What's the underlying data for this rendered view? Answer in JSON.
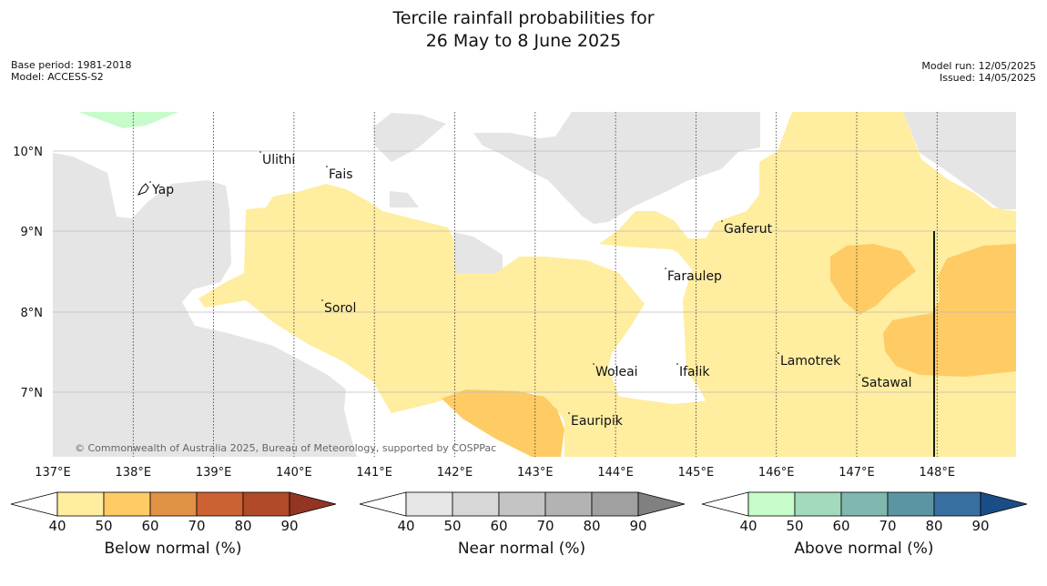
{
  "title": {
    "line1": "Tercile rainfall probabilities for",
    "line2": "26 May to 8 June 2025"
  },
  "meta": {
    "base_period": "Base period: 1981-2018",
    "model": "Model: ACCESS-S2",
    "model_run": "Model run: 12/05/2025",
    "issued": "Issued: 14/05/2025"
  },
  "map": {
    "lon_ticks": [
      "137°E",
      "138°E",
      "139°E",
      "140°E",
      "141°E",
      "142°E",
      "143°E",
      "144°E",
      "145°E",
      "146°E",
      "147°E",
      "148°E"
    ],
    "lat_ticks": [
      "10°N",
      "9°N",
      "8°N",
      "7°N"
    ],
    "places": [
      "Yap",
      "Ulithi",
      "Fais",
      "Sorol",
      "Woleai",
      "Ifalik",
      "Eauripik",
      "Faraulep",
      "Gaferut",
      "Lamotrek",
      "Satawal"
    ],
    "copyright": "© Commonwealth of Australia 2025, Bureau of Meteorology, supported by COSPPac",
    "colors": {
      "land": "#e5e5e5",
      "below_40_50": "#ffeda0",
      "below_50_60": "#fecb65",
      "above_40_50": "#c7fcca",
      "ocean": "#ffffff"
    }
  },
  "colorbars": [
    {
      "label": "Below normal (%)",
      "ticks": [
        "40",
        "50",
        "60",
        "70",
        "80",
        "90"
      ],
      "colors": [
        "#ffffff",
        "#ffeda0",
        "#fecb65",
        "#e09144",
        "#cc6133",
        "#b04a27",
        "#943424"
      ]
    },
    {
      "label": "Near normal (%)",
      "ticks": [
        "40",
        "50",
        "60",
        "70",
        "80",
        "90"
      ],
      "colors": [
        "#ffffff",
        "#e6e6e6",
        "#d7d7d7",
        "#c4c4c4",
        "#b3b3b3",
        "#a0a0a0",
        "#808080"
      ]
    },
    {
      "label": "Above normal (%)",
      "ticks": [
        "40",
        "50",
        "60",
        "70",
        "80",
        "90"
      ],
      "colors": [
        "#ffffff",
        "#c7fcca",
        "#a3d9bc",
        "#80b7af",
        "#5b95a2",
        "#386fa0",
        "#1a4d86"
      ]
    }
  ]
}
